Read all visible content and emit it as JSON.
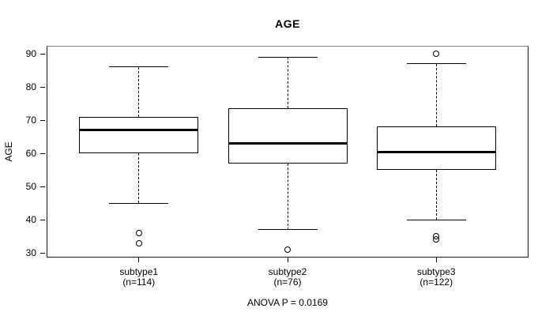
{
  "chart_data": {
    "type": "boxplot",
    "title": "AGE",
    "ylabel": "AGE",
    "xlabel": "",
    "annotation": "ANOVA P = 0.0169",
    "y_ticks": [
      30,
      40,
      50,
      60,
      70,
      80,
      90
    ],
    "ylim": [
      28.6,
      92.4
    ],
    "grid": false,
    "legend": "none",
    "groups": [
      {
        "label": "subtype1",
        "n_label": "(n=114)",
        "n": 114,
        "whisker_low": 45,
        "q1": 60,
        "median": 67,
        "q3": 71,
        "whisker_high": 86,
        "outliers": [
          36,
          33
        ]
      },
      {
        "label": "subtype2",
        "n_label": "(n=76)",
        "n": 76,
        "whisker_low": 37,
        "q1": 57,
        "median": 63,
        "q3": 73.5,
        "whisker_high": 89,
        "outliers": [
          31
        ]
      },
      {
        "label": "subtype3",
        "n_label": "(n=122)",
        "n": 122,
        "whisker_low": 40,
        "q1": 55,
        "median": 60.5,
        "q3": 68,
        "whisker_high": 87,
        "outliers": [
          90,
          35,
          34
        ]
      }
    ],
    "colors": {
      "line": "#000000",
      "box_fill": "#ffffff",
      "background": "#ffffff",
      "frame_top": "#828282"
    }
  }
}
